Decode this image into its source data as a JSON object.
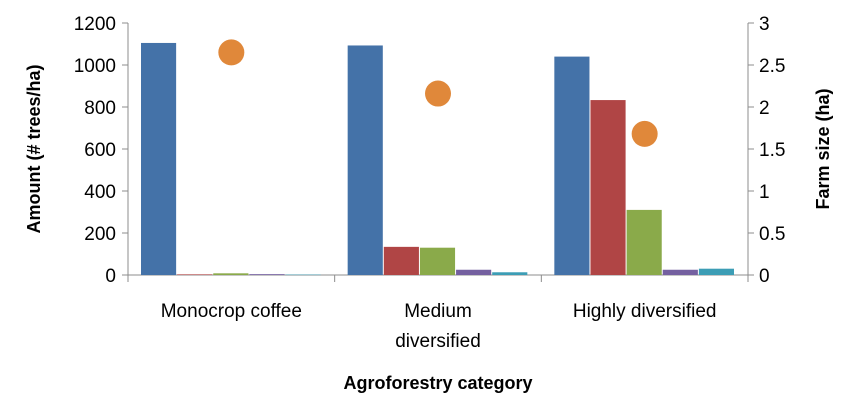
{
  "chart_data": {
    "type": "bar",
    "categories": [
      "Monocrop coffee",
      "Medium diversified",
      "Highly diversified"
    ],
    "category_lines": [
      [
        "Monocrop coffee"
      ],
      [
        "Medium",
        "diversified"
      ],
      [
        "Highly diversified"
      ]
    ],
    "xlabel": "Agroforestry category",
    "ylabel": "Amount (# trees/ha)",
    "y2label": "Farm size (ha)",
    "ylim": [
      0,
      1200
    ],
    "y_ticks": [
      0,
      200,
      400,
      600,
      800,
      1000,
      1200
    ],
    "y2lim": [
      0,
      3
    ],
    "y2_ticks": [
      "0",
      "0.5",
      "1",
      "1.5",
      "2",
      "2.5",
      "3"
    ],
    "grid": false,
    "series": [
      {
        "values": [
          1105,
          1093,
          1040
        ],
        "color": "#4472A8",
        "type": "bar"
      },
      {
        "values": [
          3,
          134,
          833
        ],
        "color": "#B04545",
        "type": "bar"
      },
      {
        "values": [
          8,
          130,
          310
        ],
        "color": "#8AAA4A",
        "type": "bar"
      },
      {
        "values": [
          4,
          25,
          25
        ],
        "color": "#7460A0",
        "type": "bar"
      },
      {
        "values": [
          2,
          13,
          30
        ],
        "color": "#3C9DB5",
        "type": "bar"
      }
    ],
    "farm_size": {
      "values": [
        2.65,
        2.16,
        1.68
      ],
      "color": "#E0883A",
      "type": "scatter",
      "axis": "right"
    }
  }
}
